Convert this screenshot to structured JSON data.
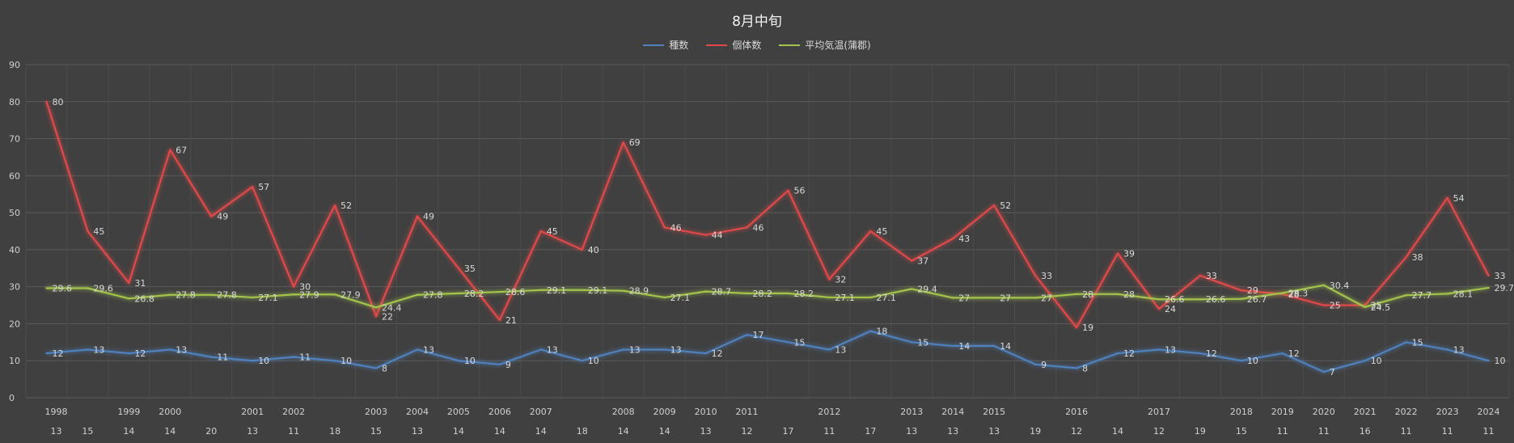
{
  "chart_data": {
    "type": "line",
    "title": "8月中旬",
    "ylim": [
      0,
      90
    ],
    "yticks": [
      0,
      10,
      20,
      30,
      40,
      50,
      60,
      70,
      80,
      90
    ],
    "grid": true,
    "legend_position": "top",
    "categories": [
      {
        "year": "1998",
        "sub": "13"
      },
      {
        "year": "",
        "sub": "15"
      },
      {
        "year": "1999",
        "sub": "14"
      },
      {
        "year": "2000",
        "sub": "14"
      },
      {
        "year": "",
        "sub": "20"
      },
      {
        "year": "2001",
        "sub": "13"
      },
      {
        "year": "2002",
        "sub": "11"
      },
      {
        "year": "",
        "sub": "18"
      },
      {
        "year": "2003",
        "sub": "15"
      },
      {
        "year": "2004",
        "sub": "13"
      },
      {
        "year": "2005",
        "sub": "14"
      },
      {
        "year": "2006",
        "sub": "14"
      },
      {
        "year": "2007",
        "sub": "14"
      },
      {
        "year": "",
        "sub": "18"
      },
      {
        "year": "2008",
        "sub": "14"
      },
      {
        "year": "2009",
        "sub": "14"
      },
      {
        "year": "2010",
        "sub": "13"
      },
      {
        "year": "2011",
        "sub": "12"
      },
      {
        "year": "",
        "sub": "17"
      },
      {
        "year": "2012",
        "sub": "11"
      },
      {
        "year": "",
        "sub": "17"
      },
      {
        "year": "2013",
        "sub": "13"
      },
      {
        "year": "2014",
        "sub": "13"
      },
      {
        "year": "2015",
        "sub": "13"
      },
      {
        "year": "",
        "sub": "19"
      },
      {
        "year": "2016",
        "sub": "12"
      },
      {
        "year": "",
        "sub": "14"
      },
      {
        "year": "2017",
        "sub": "12"
      },
      {
        "year": "",
        "sub": "19"
      },
      {
        "year": "2018",
        "sub": "15"
      },
      {
        "year": "2019",
        "sub": "11"
      },
      {
        "year": "2020",
        "sub": "11"
      },
      {
        "year": "2021",
        "sub": "16"
      },
      {
        "year": "2022",
        "sub": "11"
      },
      {
        "year": "2023",
        "sub": "11"
      },
      {
        "year": "2024",
        "sub": "11"
      }
    ],
    "series": [
      {
        "name": "種数",
        "color": "#4f81bd",
        "values": [
          12,
          13,
          12,
          13,
          11,
          10,
          11,
          10,
          8,
          13,
          10,
          9,
          13,
          10,
          13,
          13,
          12,
          17,
          15,
          13,
          18,
          15,
          14,
          14,
          9,
          8,
          12,
          13,
          12,
          10,
          12,
          7,
          10,
          15,
          13,
          10
        ]
      },
      {
        "name": "個体数",
        "color": "#e04848",
        "values": [
          80,
          45,
          31,
          67,
          49,
          57,
          30,
          52,
          22,
          49,
          35,
          21,
          45,
          40,
          69,
          46,
          44,
          46,
          56,
          32,
          45,
          37,
          43,
          52,
          33,
          19,
          39,
          24,
          33,
          29,
          28,
          25,
          25,
          38,
          54,
          33
        ]
      },
      {
        "name": "平均気温(蒲郡)",
        "color": "#a3c34c",
        "values": [
          29.6,
          29.6,
          26.8,
          27.8,
          27.8,
          27.1,
          27.9,
          27.9,
          24.4,
          27.8,
          28.2,
          28.6,
          29.1,
          29.1,
          28.9,
          27.1,
          28.7,
          28.2,
          28.2,
          27.1,
          27.1,
          29.4,
          27,
          27,
          27,
          28,
          28,
          26.6,
          26.6,
          26.7,
          28.3,
          30.4,
          24.5,
          27.7,
          28.1,
          29.7
        ]
      }
    ]
  }
}
